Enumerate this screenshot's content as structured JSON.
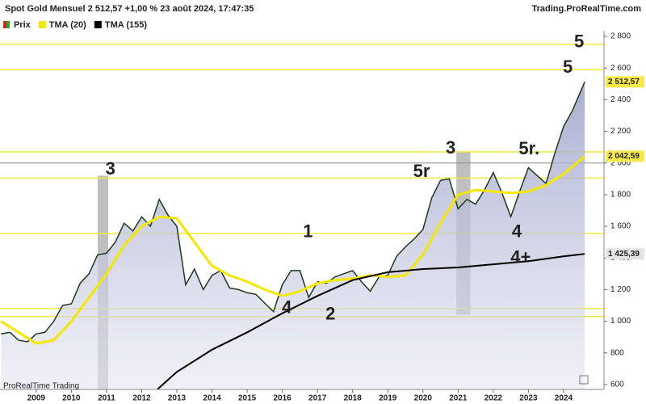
{
  "header": {
    "title": "Spot  Gold Mensuel 2 512,57 +1,00 % 23 août 2024, 17:47:35",
    "site": "Trading.ProRealTime.com",
    "watermark": "ProRealTime Trading"
  },
  "chart_data": {
    "type": "line",
    "xlim": [
      2007.97,
      2025.15
    ],
    "ylim": [
      569,
      3030
    ],
    "xticks": [
      2009,
      2010,
      2011,
      2012,
      2013,
      2014,
      2015,
      2016,
      2017,
      2018,
      2019,
      2020,
      2021,
      2022,
      2023,
      2024
    ],
    "yticks": [
      600,
      800,
      {
        "value": 1000,
        "label": "1 000"
      },
      {
        "value": 1200,
        "label": "1 200"
      },
      {
        "value": 1400,
        "label": "1 400"
      },
      {
        "value": 1600,
        "label": "1 600"
      },
      {
        "value": 1800,
        "label": "1 800"
      },
      {
        "value": 2000,
        "label": "2 000"
      },
      {
        "value": 2200,
        "label": "2 200"
      },
      {
        "value": 2400,
        "label": "2 400"
      },
      {
        "value": 2600,
        "label": "2 600"
      },
      {
        "value": 2800,
        "label": "2 800"
      }
    ],
    "levels": [
      2750,
      2590,
      2070,
      1905,
      1555,
      1080,
      1030
    ],
    "level_color": "#f0ea3a",
    "gray_level": 2000,
    "shaded_zones": [
      {
        "x": [
          2010.75,
          2011.05
        ],
        "y": [
          569,
          1920
        ]
      },
      {
        "x": [
          2020.95,
          2021.35
        ],
        "y": [
          1040,
          2070
        ]
      }
    ],
    "series": [
      {
        "name": "Prix",
        "color": "#1c3a1c",
        "tag_color": "#f7e94a",
        "last_label": "2 512,57",
        "x": [
          2008.0,
          2008.25,
          2008.5,
          2008.75,
          2009.0,
          2009.25,
          2009.5,
          2009.75,
          2010.0,
          2010.25,
          2010.5,
          2010.75,
          2011.0,
          2011.25,
          2011.5,
          2011.75,
          2012.0,
          2012.25,
          2012.5,
          2012.75,
          2013.0,
          2013.25,
          2013.5,
          2013.75,
          2014.0,
          2014.25,
          2014.5,
          2014.75,
          2015.0,
          2015.25,
          2015.5,
          2015.75,
          2016.0,
          2016.25,
          2016.5,
          2016.75,
          2017.0,
          2017.25,
          2017.5,
          2017.75,
          2018.0,
          2018.25,
          2018.5,
          2018.75,
          2019.0,
          2019.25,
          2019.5,
          2019.75,
          2020.0,
          2020.25,
          2020.5,
          2020.75,
          2021.0,
          2021.25,
          2021.5,
          2021.75,
          2022.0,
          2022.25,
          2022.5,
          2022.75,
          2023.0,
          2023.25,
          2023.5,
          2023.75,
          2024.0,
          2024.25,
          2024.6
        ],
        "values": [
          920,
          930,
          880,
          870,
          920,
          930,
          1000,
          1100,
          1110,
          1240,
          1300,
          1420,
          1430,
          1500,
          1620,
          1570,
          1660,
          1600,
          1770,
          1670,
          1600,
          1230,
          1330,
          1200,
          1290,
          1320,
          1210,
          1200,
          1180,
          1170,
          1115,
          1060,
          1230,
          1320,
          1320,
          1150,
          1250,
          1240,
          1280,
          1300,
          1320,
          1250,
          1190,
          1280,
          1290,
          1410,
          1470,
          1520,
          1580,
          1780,
          1890,
          1900,
          1710,
          1770,
          1740,
          1830,
          1940,
          1810,
          1660,
          1820,
          1970,
          1920,
          1870,
          2060,
          2230,
          2330,
          2512.57
        ]
      },
      {
        "name": "TMA (20)",
        "color": "#f5e800",
        "tag_color": "#f7e94a",
        "last_label": "2 042,59",
        "x": [
          2008.0,
          2009.0,
          2009.5,
          2010.0,
          2010.5,
          2011.0,
          2011.5,
          2012.0,
          2012.5,
          2013.0,
          2013.5,
          2014.0,
          2014.5,
          2015.0,
          2015.5,
          2016.0,
          2016.5,
          2017.0,
          2017.5,
          2018.0,
          2018.5,
          2019.0,
          2019.5,
          2020.0,
          2020.5,
          2021.0,
          2021.5,
          2022.0,
          2022.5,
          2023.0,
          2023.5,
          2024.0,
          2024.6
        ],
        "values": [
          1000,
          860,
          880,
          1000,
          1150,
          1300,
          1480,
          1600,
          1660,
          1650,
          1500,
          1350,
          1290,
          1250,
          1200,
          1160,
          1190,
          1240,
          1260,
          1270,
          1290,
          1280,
          1290,
          1420,
          1620,
          1800,
          1830,
          1820,
          1810,
          1820,
          1860,
          1930,
          2042.59
        ]
      },
      {
        "name": "TMA (155)",
        "color": "#000000",
        "tag_color": "#e4e4e4",
        "last_label": "1 425,39",
        "x": [
          2012.45,
          2013.0,
          2014.0,
          2015.0,
          2016.0,
          2017.0,
          2018.0,
          2019.0,
          2020.0,
          2021.0,
          2022.0,
          2023.0,
          2024.0,
          2024.6
        ],
        "values": [
          570,
          680,
          820,
          930,
          1050,
          1160,
          1260,
          1310,
          1330,
          1340,
          1360,
          1380,
          1410,
          1425.39
        ]
      }
    ],
    "annotations": [
      {
        "text": "3",
        "x": 2011.11,
        "y": 1958,
        "color": "#f2e600"
      },
      {
        "text": "5r",
        "x": 2019.96,
        "y": 1942,
        "color": "#f2e600"
      },
      {
        "text": "3",
        "x": 2020.79,
        "y": 2090,
        "color": "#1a1ad6"
      },
      {
        "text": "5r.",
        "x": 2023.02,
        "y": 2085,
        "color": "#1a1ad6"
      },
      {
        "text": "5",
        "x": 2024.12,
        "y": 2600,
        "color": "#1a1ad6"
      },
      {
        "text": "5",
        "x": 2024.44,
        "y": 2760,
        "color": "#f2e600"
      },
      {
        "text": "1",
        "x": 2016.73,
        "y": 1560,
        "color": "#1a1ad6"
      },
      {
        "text": "4",
        "x": 2016.13,
        "y": 1080,
        "color": "#f2e600"
      },
      {
        "text": "2",
        "x": 2017.37,
        "y": 1040,
        "color": "#1a1ad6"
      },
      {
        "text": "4",
        "x": 2022.67,
        "y": 1560,
        "color": "#1a1ad6"
      },
      {
        "text": "4+",
        "x": 2022.78,
        "y": 1397,
        "color": "#1a1ad6"
      }
    ]
  }
}
